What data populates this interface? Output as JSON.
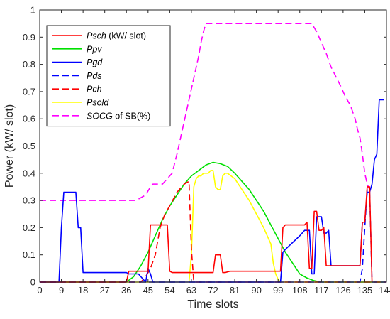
{
  "chart_data": {
    "type": "line",
    "xlabel": "Time slots",
    "ylabel": "Power (kW/ slot)",
    "xlim": [
      0,
      144
    ],
    "ylim": [
      0,
      1
    ],
    "xticks": [
      0,
      9,
      18,
      27,
      36,
      45,
      54,
      63,
      72,
      81,
      90,
      99,
      108,
      117,
      126,
      135,
      144
    ],
    "yticks": [
      0,
      0.1,
      0.2,
      0.3,
      0.4,
      0.5,
      0.6,
      0.7,
      0.8,
      0.9,
      1
    ],
    "grid": false,
    "legend_position": "top-left",
    "series": [
      {
        "name": "Psch",
        "legend": {
          "italic": "Psch",
          "rest": " (kW/ slot)"
        },
        "color": "#ff0000",
        "dash": "solid",
        "x": [
          0,
          36,
          37,
          45,
          46,
          53,
          54,
          55,
          72,
          73,
          75,
          76,
          77,
          79,
          100,
          101,
          102,
          110,
          111,
          112,
          113,
          114,
          115,
          116,
          117,
          118,
          119,
          120,
          121,
          122,
          123,
          133,
          134,
          135,
          136,
          137,
          138
        ],
        "y": [
          0,
          0,
          0.04,
          0.04,
          0.21,
          0.21,
          0.04,
          0.035,
          0.035,
          0.1,
          0.1,
          0.035,
          0.035,
          0.04,
          0.04,
          0.2,
          0.21,
          0.21,
          0.22,
          0.05,
          0.05,
          0.26,
          0.26,
          0.19,
          0.19,
          0.2,
          0.06,
          0.06,
          0.06,
          0.06,
          0.06,
          0.06,
          0.22,
          0.22,
          0.35,
          0.35,
          0
        ]
      },
      {
        "name": "Ppv",
        "legend": {
          "italic": "Ppv",
          "rest": ""
        },
        "color": "#00e000",
        "dash": "solid",
        "x": [
          0,
          36,
          39,
          42,
          45,
          48,
          51,
          54,
          57,
          60,
          63,
          66,
          69,
          72,
          75,
          78,
          81,
          84,
          87,
          90,
          93,
          96,
          99,
          102,
          105,
          108,
          111,
          114,
          117,
          120,
          123,
          126,
          144
        ],
        "y": [
          0,
          0,
          0.02,
          0.06,
          0.11,
          0.17,
          0.23,
          0.28,
          0.32,
          0.36,
          0.39,
          0.41,
          0.43,
          0.44,
          0.435,
          0.425,
          0.4,
          0.37,
          0.34,
          0.3,
          0.26,
          0.21,
          0.16,
          0.11,
          0.07,
          0.03,
          0.015,
          0.005,
          0,
          0,
          0,
          0,
          0
        ]
      },
      {
        "name": "Pgd",
        "legend": {
          "italic": "Pgd",
          "rest": ""
        },
        "color": "#0000ff",
        "dash": "solid",
        "x": [
          0,
          8,
          9,
          10,
          14,
          15,
          16,
          17,
          18,
          19,
          20,
          36,
          37,
          41,
          44,
          45,
          46,
          47,
          48,
          49,
          50,
          100,
          101,
          102,
          108,
          110,
          112,
          113,
          114,
          115,
          116,
          117,
          118,
          119,
          120,
          121,
          122,
          123,
          133,
          134,
          135,
          136,
          137,
          138,
          139,
          140,
          141,
          142,
          143
        ],
        "y": [
          0,
          0,
          0.2,
          0.33,
          0.33,
          0.33,
          0.2,
          0.2,
          0.035,
          0.035,
          0.035,
          0.035,
          0.03,
          0.03,
          0.0,
          0.05,
          0.03,
          0.0,
          0.0,
          0.0,
          0.0,
          0.0,
          0.11,
          0.12,
          0.17,
          0.19,
          0.19,
          0.03,
          0.03,
          0.24,
          0.24,
          0.24,
          0.18,
          0.18,
          0.19,
          0.06,
          0.06,
          0.06,
          0.06,
          0.22,
          0.22,
          0.33,
          0.33,
          0.36,
          0.45,
          0.47,
          0.67,
          0.67,
          0.67
        ]
      },
      {
        "name": "Pds",
        "legend": {
          "italic": "Pds",
          "rest": ""
        },
        "color": "#0000ff",
        "dash": "dashed",
        "x": [
          0,
          133,
          134,
          135,
          136,
          137,
          138,
          144
        ],
        "y": [
          0,
          0,
          0.05,
          0.2,
          0.34,
          0.34,
          0,
          0
        ]
      },
      {
        "name": "Pch",
        "legend": {
          "italic": "Pch",
          "rest": ""
        },
        "color": "#ff0000",
        "dash": "dashed",
        "x": [
          0,
          42,
          44,
          46,
          48,
          50,
          52,
          54,
          57,
          60,
          62,
          63,
          64,
          144
        ],
        "y": [
          0,
          0,
          0.02,
          0.05,
          0.1,
          0.2,
          0.25,
          0.28,
          0.33,
          0.36,
          0.37,
          0.12,
          0,
          0
        ]
      },
      {
        "name": "Psold",
        "legend": {
          "italic": "Psold",
          "rest": ""
        },
        "color": "#ffff00",
        "dash": "solid",
        "x": [
          0,
          62,
          63,
          64,
          65,
          66,
          67,
          68,
          69,
          70,
          71,
          72,
          73,
          74,
          75,
          76,
          77,
          78,
          81,
          84,
          87,
          90,
          93,
          96,
          97,
          98,
          99,
          100,
          101,
          102,
          144
        ],
        "y": [
          0,
          0,
          0.1,
          0.35,
          0.38,
          0.39,
          0.39,
          0.4,
          0.4,
          0.4,
          0.41,
          0.41,
          0.35,
          0.34,
          0.34,
          0.39,
          0.4,
          0.4,
          0.38,
          0.34,
          0.3,
          0.25,
          0.2,
          0.14,
          0.07,
          0.03,
          0.01,
          0.0,
          0.0,
          0.0,
          0.0
        ]
      },
      {
        "name": "SOCG of SB(%)",
        "legend": {
          "italic": "SOCG",
          "rest": " of SB(%)"
        },
        "color": "#ff00ff",
        "dash": "dashed",
        "x": [
          0,
          40,
          44,
          46,
          47,
          51,
          53,
          55,
          57,
          59,
          61,
          63,
          65,
          66,
          67,
          68,
          69,
          72,
          80,
          90,
          100,
          110,
          112,
          113,
          115,
          117,
          119,
          121,
          125,
          127,
          129,
          131,
          132,
          133,
          134,
          135,
          136,
          137
        ],
        "y": [
          0.3,
          0.3,
          0.32,
          0.35,
          0.36,
          0.36,
          0.38,
          0.4,
          0.47,
          0.55,
          0.63,
          0.71,
          0.79,
          0.83,
          0.88,
          0.92,
          0.95,
          0.95,
          0.95,
          0.95,
          0.95,
          0.95,
          0.95,
          0.95,
          0.92,
          0.88,
          0.84,
          0.79,
          0.72,
          0.68,
          0.65,
          0.6,
          0.56,
          0.53,
          0.47,
          0.4,
          0.36,
          0.34
        ]
      }
    ]
  }
}
